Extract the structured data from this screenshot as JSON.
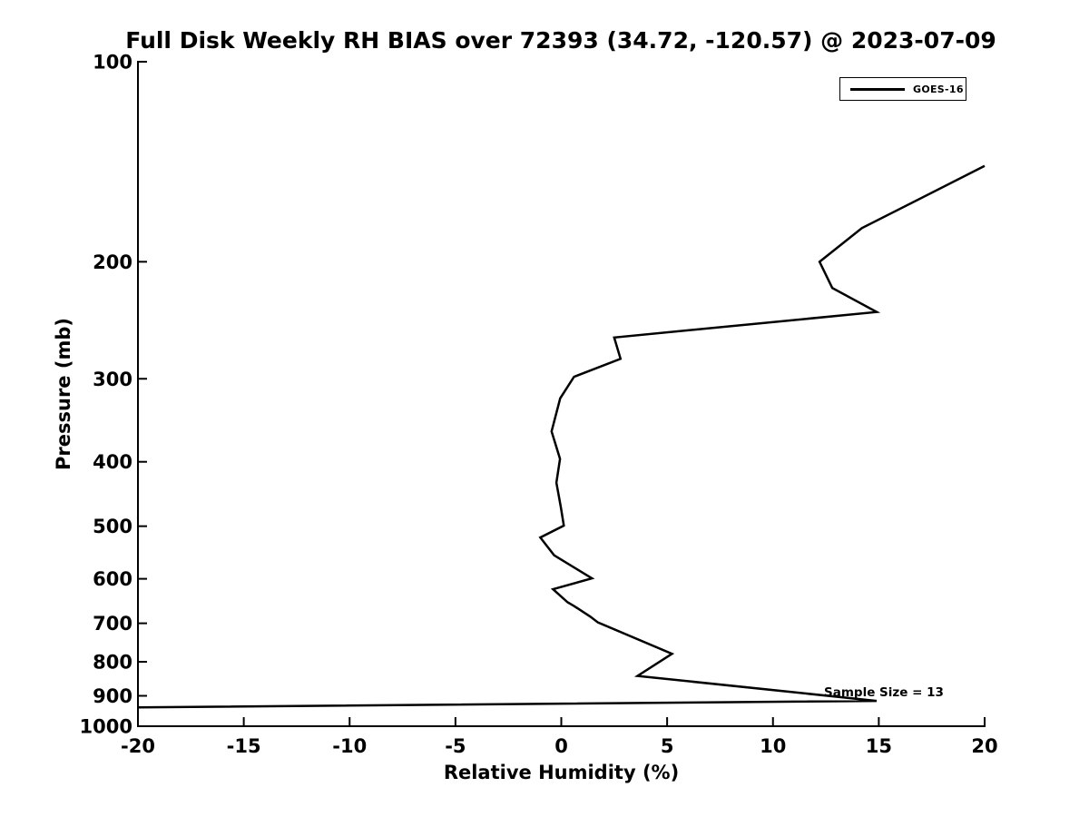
{
  "figure": {
    "title": "Full Disk Weekly RH BIAS over 72393 (34.72, -120.57) @ 2023-07-09",
    "xlabel": "Relative Humidity (%)",
    "ylabel": "Pressure (mb)",
    "annotation": "Sample Size = 13",
    "legend": {
      "entries": [
        {
          "label": "GOES-16",
          "color": "#000000"
        }
      ]
    },
    "colors": {
      "background": "#ffffff",
      "axes": "#000000",
      "line": "#000000",
      "text": "#000000"
    }
  },
  "chart_data": {
    "type": "line",
    "title": "Full Disk Weekly RH BIAS over 72393 (34.72, -120.57) @ 2023-07-09",
    "xlabel": "Relative Humidity (%)",
    "ylabel": "Pressure (mb)",
    "xlim": [
      -20,
      20
    ],
    "ylim": [
      100,
      1000
    ],
    "yscale": "log",
    "y_axis_inverted_pressure": true,
    "grid": false,
    "xticks": [
      -20,
      -15,
      -10,
      -5,
      0,
      5,
      10,
      15,
      20
    ],
    "yticks": [
      100,
      200,
      300,
      400,
      500,
      600,
      700,
      800,
      900,
      1000
    ],
    "legend_position": "top-right-inside",
    "series": [
      {
        "name": "GOES-16",
        "color": "#000000",
        "line_width": 2.5,
        "clipped_at_plot_edges": true,
        "points_rh_pressure": [
          [
            20.0,
            143.5
          ],
          [
            14.2,
            178
          ],
          [
            12.2,
            200
          ],
          [
            12.8,
            219
          ],
          [
            14.9,
            238
          ],
          [
            2.5,
            260
          ],
          [
            2.8,
            280
          ],
          [
            0.6,
            298
          ],
          [
            -0.05,
            321
          ],
          [
            -0.46,
            360
          ],
          [
            -0.06,
            396
          ],
          [
            -0.23,
            430
          ],
          [
            -0.02,
            468
          ],
          [
            0.12,
            499
          ],
          [
            -0.99,
            520
          ],
          [
            -0.34,
            553
          ],
          [
            1.45,
            599
          ],
          [
            -0.39,
            622
          ],
          [
            0.3,
            651
          ],
          [
            0.59,
            659
          ],
          [
            1.37,
            684
          ],
          [
            1.73,
            698
          ],
          [
            5.23,
            778
          ],
          [
            3.6,
            840
          ],
          [
            14.9,
            916
          ],
          [
            -20.0,
            937
          ]
        ]
      }
    ],
    "annotations": [
      {
        "text": "Sample Size = 13",
        "approx_rh": 12.5,
        "approx_pressure": 905
      }
    ]
  }
}
